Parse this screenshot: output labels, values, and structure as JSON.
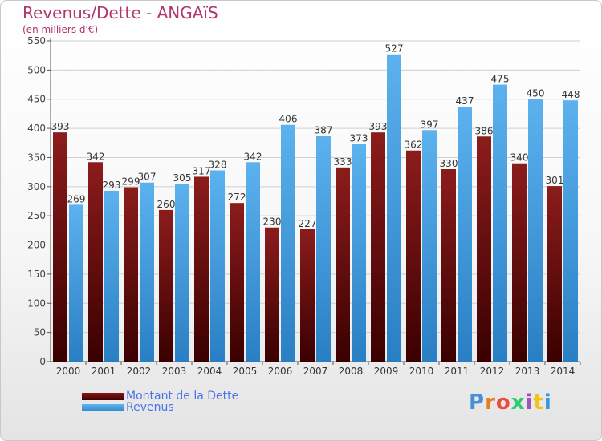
{
  "header": {
    "title": "Revenus/Dette - ANGAïS",
    "subtitle": "(en milliers d'€)"
  },
  "legend": {
    "debt_label": "Montant de la Dette",
    "revenue_label": "Revenus"
  },
  "logo": {
    "text": "Proxiti",
    "letter_colors": [
      "#4a90d9",
      "#e67e22",
      "#e74c3c",
      "#2ecc71",
      "#9b59b6",
      "#f1c40f",
      "#3498db"
    ]
  },
  "colors": {
    "debt": "#6b0f0f",
    "revenue": "#4aa3e6",
    "grid": "#cccccc",
    "title": "#b0366b"
  },
  "chart_data": {
    "type": "bar",
    "categories": [
      "2000",
      "2001",
      "2002",
      "2003",
      "2004",
      "2005",
      "2006",
      "2007",
      "2008",
      "2009",
      "2010",
      "2011",
      "2012",
      "2013",
      "2014"
    ],
    "series": [
      {
        "name": "Montant de la Dette",
        "values": [
          393,
          342,
          299,
          260,
          317,
          272,
          230,
          227,
          333,
          393,
          362,
          330,
          386,
          340,
          301
        ],
        "labels": [
          "393",
          "342",
          "299",
          "260",
          "317",
          "272",
          "230",
          "227",
          "333",
          "393",
          "362",
          "330",
          "386",
          "340",
          "301"
        ]
      },
      {
        "name": "Revenus",
        "values": [
          269,
          293,
          307,
          305,
          328,
          342,
          406,
          387,
          373,
          527,
          397,
          437,
          475,
          450,
          448
        ],
        "labels": [
          "269",
          "293",
          "307",
          "305",
          "328",
          "342",
          "406",
          "387",
          "373",
          "527",
          "397",
          "437",
          "475",
          "450",
          "448"
        ]
      }
    ],
    "ylim": [
      0,
      550
    ],
    "yticks": [
      0,
      50,
      100,
      150,
      200,
      250,
      300,
      350,
      400,
      450,
      500,
      550
    ],
    "grid": true,
    "legend_position": "bottom-left"
  }
}
